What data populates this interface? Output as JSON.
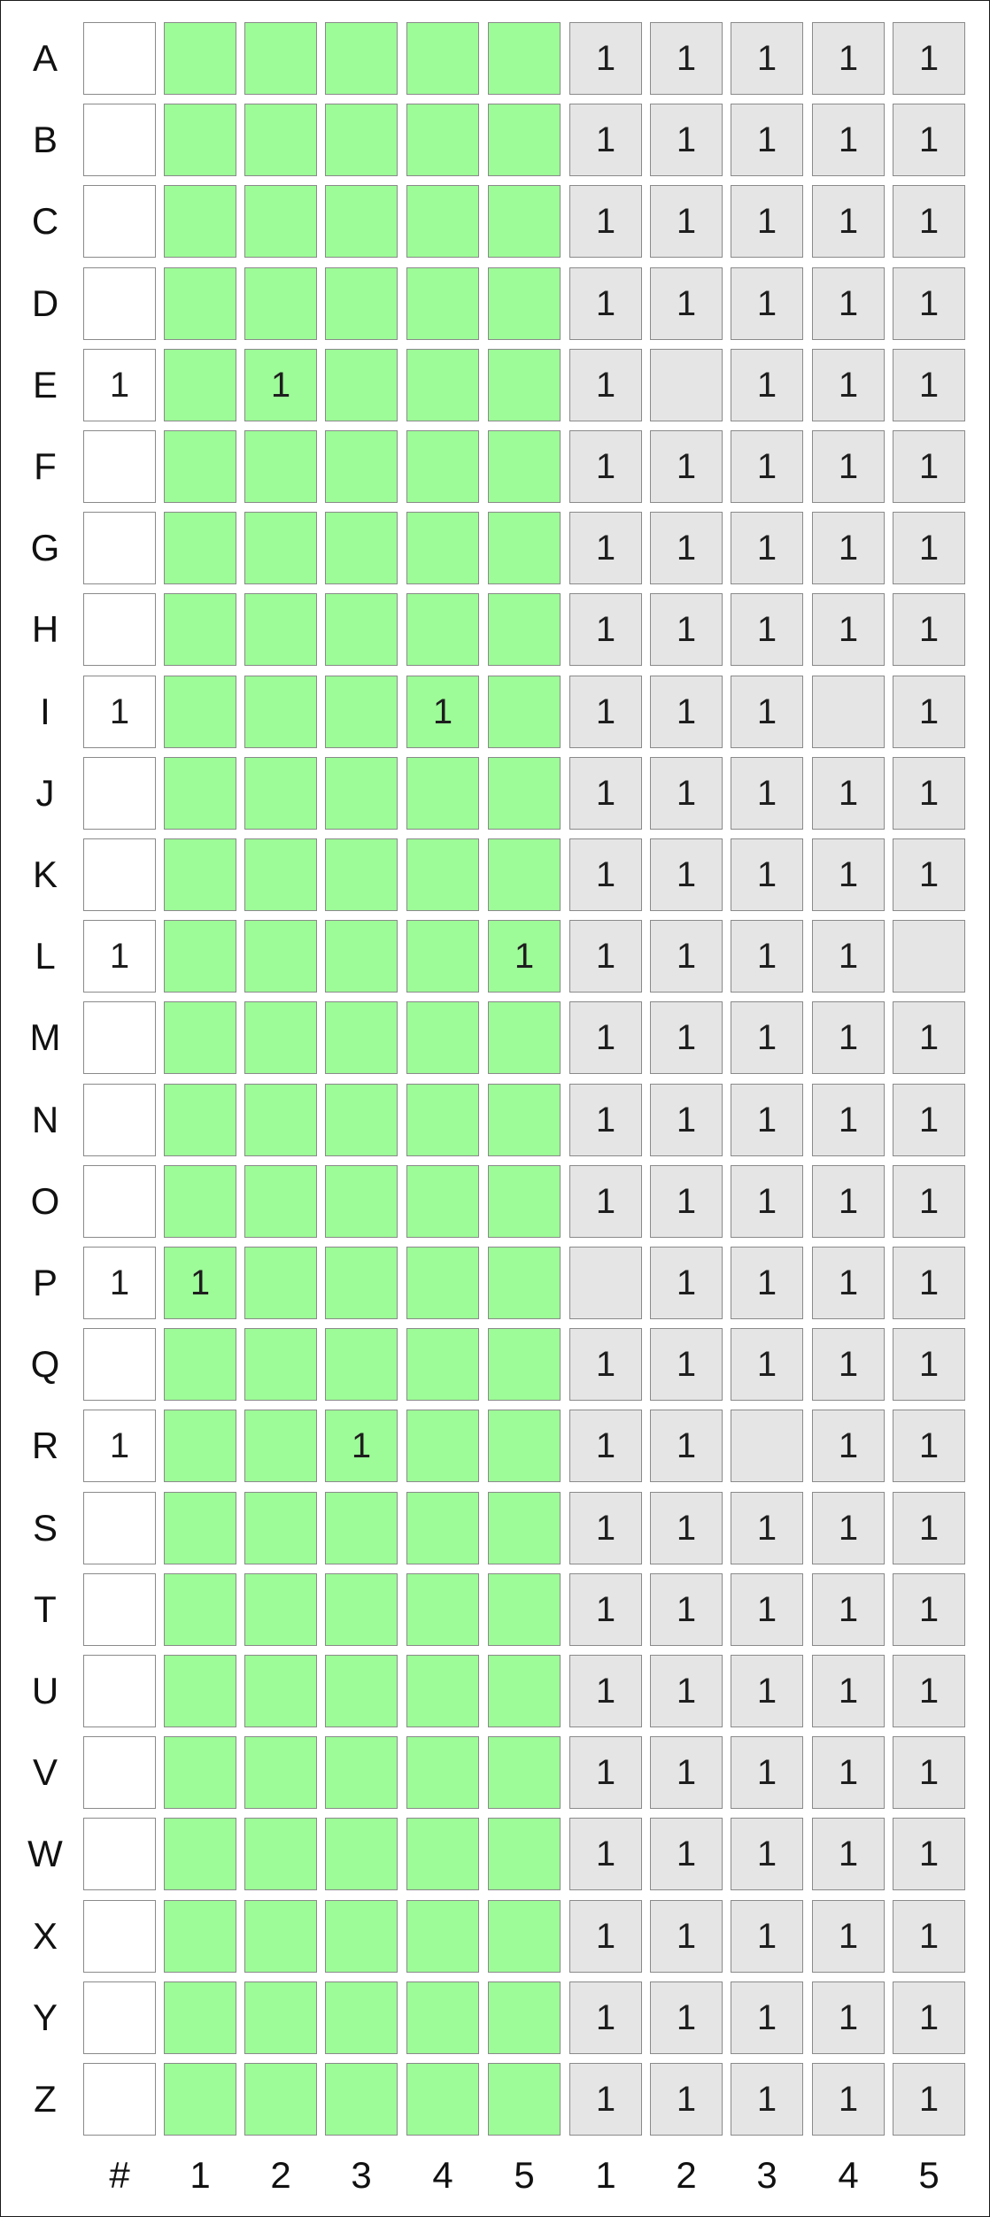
{
  "colors": {
    "count_cell": "#ffffff",
    "grid_cell": "#9dfb98",
    "tally_cell": "#e5e5e5",
    "cell_border": "#8a8a8a",
    "text": "#111111"
  },
  "row_labels": [
    "A",
    "B",
    "C",
    "D",
    "E",
    "F",
    "G",
    "H",
    "I",
    "J",
    "K",
    "L",
    "M",
    "N",
    "O",
    "P",
    "Q",
    "R",
    "S",
    "T",
    "U",
    "V",
    "W",
    "X",
    "Y",
    "Z"
  ],
  "column_labels": [
    "#",
    "1",
    "2",
    "3",
    "4",
    "5",
    "1",
    "2",
    "3",
    "4",
    "5"
  ],
  "rows": [
    {
      "count": "",
      "grid": [
        "",
        "",
        "",
        "",
        ""
      ],
      "tally": [
        "1",
        "1",
        "1",
        "1",
        "1"
      ]
    },
    {
      "count": "",
      "grid": [
        "",
        "",
        "",
        "",
        ""
      ],
      "tally": [
        "1",
        "1",
        "1",
        "1",
        "1"
      ]
    },
    {
      "count": "",
      "grid": [
        "",
        "",
        "",
        "",
        ""
      ],
      "tally": [
        "1",
        "1",
        "1",
        "1",
        "1"
      ]
    },
    {
      "count": "",
      "grid": [
        "",
        "",
        "",
        "",
        ""
      ],
      "tally": [
        "1",
        "1",
        "1",
        "1",
        "1"
      ]
    },
    {
      "count": "1",
      "grid": [
        "",
        "1",
        "",
        "",
        ""
      ],
      "tally": [
        "1",
        "",
        "1",
        "1",
        "1"
      ]
    },
    {
      "count": "",
      "grid": [
        "",
        "",
        "",
        "",
        ""
      ],
      "tally": [
        "1",
        "1",
        "1",
        "1",
        "1"
      ]
    },
    {
      "count": "",
      "grid": [
        "",
        "",
        "",
        "",
        ""
      ],
      "tally": [
        "1",
        "1",
        "1",
        "1",
        "1"
      ]
    },
    {
      "count": "",
      "grid": [
        "",
        "",
        "",
        "",
        ""
      ],
      "tally": [
        "1",
        "1",
        "1",
        "1",
        "1"
      ]
    },
    {
      "count": "1",
      "grid": [
        "",
        "",
        "",
        "1",
        ""
      ],
      "tally": [
        "1",
        "1",
        "1",
        "",
        "1"
      ]
    },
    {
      "count": "",
      "grid": [
        "",
        "",
        "",
        "",
        ""
      ],
      "tally": [
        "1",
        "1",
        "1",
        "1",
        "1"
      ]
    },
    {
      "count": "",
      "grid": [
        "",
        "",
        "",
        "",
        ""
      ],
      "tally": [
        "1",
        "1",
        "1",
        "1",
        "1"
      ]
    },
    {
      "count": "1",
      "grid": [
        "",
        "",
        "",
        "",
        "1"
      ],
      "tally": [
        "1",
        "1",
        "1",
        "1",
        ""
      ]
    },
    {
      "count": "",
      "grid": [
        "",
        "",
        "",
        "",
        ""
      ],
      "tally": [
        "1",
        "1",
        "1",
        "1",
        "1"
      ]
    },
    {
      "count": "",
      "grid": [
        "",
        "",
        "",
        "",
        ""
      ],
      "tally": [
        "1",
        "1",
        "1",
        "1",
        "1"
      ]
    },
    {
      "count": "",
      "grid": [
        "",
        "",
        "",
        "",
        ""
      ],
      "tally": [
        "1",
        "1",
        "1",
        "1",
        "1"
      ]
    },
    {
      "count": "1",
      "grid": [
        "1",
        "",
        "",
        "",
        ""
      ],
      "tally": [
        "",
        "1",
        "1",
        "1",
        "1"
      ]
    },
    {
      "count": "",
      "grid": [
        "",
        "",
        "",
        "",
        ""
      ],
      "tally": [
        "1",
        "1",
        "1",
        "1",
        "1"
      ]
    },
    {
      "count": "1",
      "grid": [
        "",
        "",
        "1",
        "",
        ""
      ],
      "tally": [
        "1",
        "1",
        "",
        "1",
        "1"
      ]
    },
    {
      "count": "",
      "grid": [
        "",
        "",
        "",
        "",
        ""
      ],
      "tally": [
        "1",
        "1",
        "1",
        "1",
        "1"
      ]
    },
    {
      "count": "",
      "grid": [
        "",
        "",
        "",
        "",
        ""
      ],
      "tally": [
        "1",
        "1",
        "1",
        "1",
        "1"
      ]
    },
    {
      "count": "",
      "grid": [
        "",
        "",
        "",
        "",
        ""
      ],
      "tally": [
        "1",
        "1",
        "1",
        "1",
        "1"
      ]
    },
    {
      "count": "",
      "grid": [
        "",
        "",
        "",
        "",
        ""
      ],
      "tally": [
        "1",
        "1",
        "1",
        "1",
        "1"
      ]
    },
    {
      "count": "",
      "grid": [
        "",
        "",
        "",
        "",
        ""
      ],
      "tally": [
        "1",
        "1",
        "1",
        "1",
        "1"
      ]
    },
    {
      "count": "",
      "grid": [
        "",
        "",
        "",
        "",
        ""
      ],
      "tally": [
        "1",
        "1",
        "1",
        "1",
        "1"
      ]
    },
    {
      "count": "",
      "grid": [
        "",
        "",
        "",
        "",
        ""
      ],
      "tally": [
        "1",
        "1",
        "1",
        "1",
        "1"
      ]
    },
    {
      "count": "",
      "grid": [
        "",
        "",
        "",
        "",
        ""
      ],
      "tally": [
        "1",
        "1",
        "1",
        "1",
        "1"
      ]
    }
  ]
}
